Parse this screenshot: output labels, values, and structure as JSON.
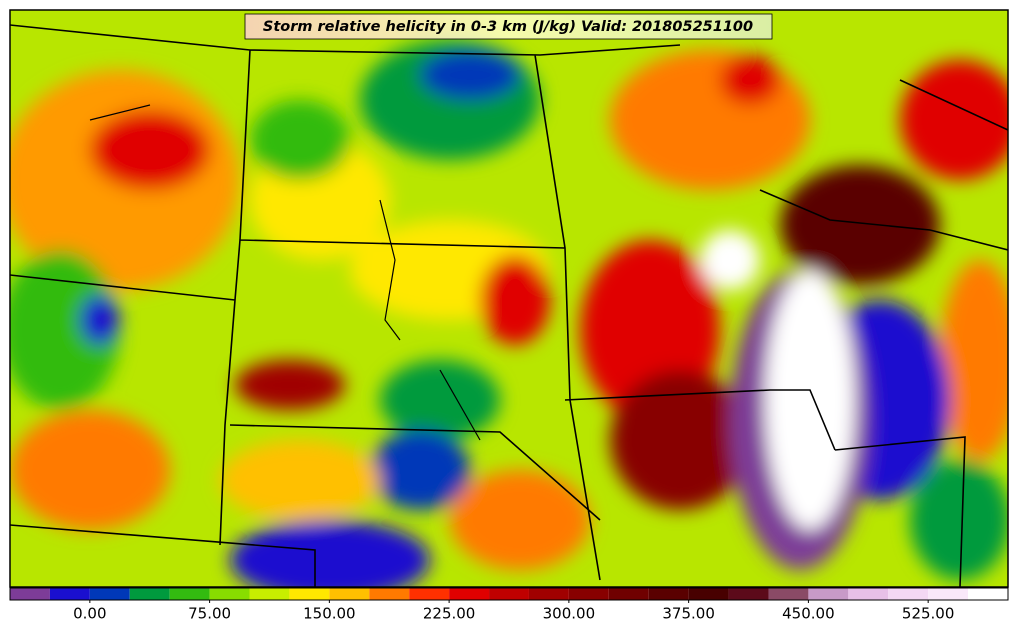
{
  "map": {
    "title": "Storm relative helicity in 0-3 km (J/kg) Valid: 201805251100"
  },
  "colorbar": {
    "lim": [
      -50,
      575
    ],
    "levels": [
      -50,
      -25,
      0,
      25,
      50,
      75,
      100,
      125,
      150,
      175,
      200,
      225,
      250,
      275,
      300,
      325,
      350,
      375,
      400,
      425,
      450,
      475,
      500,
      525,
      550,
      575
    ],
    "colors": [
      "#7d3c98",
      "#1a0fcf",
      "#0038b8",
      "#009a3e",
      "#33bb10",
      "#88dd00",
      "#c8ee00",
      "#ffe800",
      "#ffc000",
      "#ff7a00",
      "#ff3000",
      "#e00000",
      "#c00000",
      "#a00000",
      "#880000",
      "#700000",
      "#5a0000",
      "#480000",
      "#5c0a1a",
      "#8a4a66",
      "#c89ac8",
      "#e8c0e8",
      "#f4d8f4",
      "#fae8fa",
      "#ffffff"
    ],
    "ticks": [
      {
        "value": 0,
        "label": "0.00"
      },
      {
        "value": 75,
        "label": "75.00"
      },
      {
        "value": 150,
        "label": "150.00"
      },
      {
        "value": 225,
        "label": "225.00"
      },
      {
        "value": 300,
        "label": "300.00"
      },
      {
        "value": 375,
        "label": "375.00"
      },
      {
        "value": 450,
        "label": "450.00"
      },
      {
        "value": 525,
        "label": "525.00"
      }
    ]
  }
}
